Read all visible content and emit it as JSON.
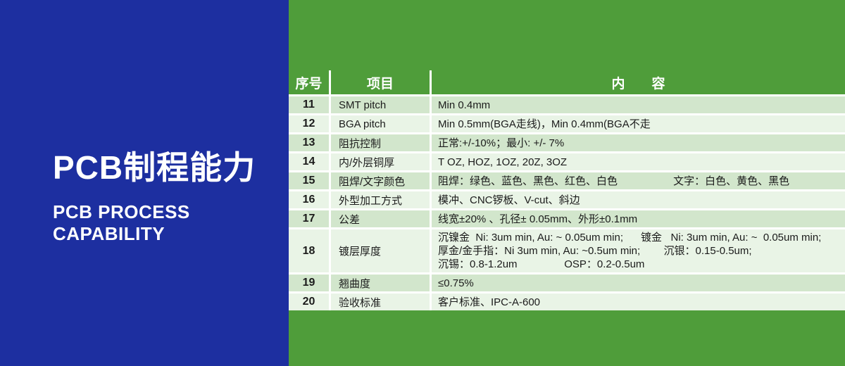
{
  "left_panel": {
    "title": "PCB制程能力",
    "subtitle_line1": "PCB PROCESS",
    "subtitle_line2": "CAPABILITY"
  },
  "table": {
    "header": {
      "no": "序号",
      "item": "项目",
      "content": "内　　容"
    },
    "rows": [
      {
        "no": "11",
        "item": "SMT pitch",
        "content_lines": [
          "Min 0.4mm"
        ]
      },
      {
        "no": "12",
        "item": "BGA pitch",
        "content_lines": [
          "Min 0.5mm(BGA走线)，Min 0.4mm(BGA不走"
        ]
      },
      {
        "no": "13",
        "item": "阻抗控制",
        "content_lines": [
          "正常:+/-10%；最小: +/- 7%"
        ]
      },
      {
        "no": "14",
        "item": "内/外层铜厚",
        "content_lines": [
          "T OZ, HOZ, 1OZ, 20Z, 3OZ"
        ]
      },
      {
        "no": "15",
        "item": "阻焊/文字颜色",
        "content_lines": [
          "阻焊：绿色、蓝色、黑色、红色、白色                   文字：白色、黄色、黑色"
        ]
      },
      {
        "no": "16",
        "item": "外型加工方式",
        "content_lines": [
          "模冲、CNC锣板、V-cut、斜边"
        ]
      },
      {
        "no": "17",
        "item": "公差",
        "content_lines": [
          "线宽±20% 、孔径± 0.05mm、外形±0.1mm"
        ]
      },
      {
        "no": "18",
        "item": "镀层厚度",
        "content_lines": [
          "沉镍金  Ni: 3um min, Au: ~ 0.05um min;      镀金   Ni: 3um min, Au: ~  0.05um min;",
          "厚金/金手指：Ni 3um min, Au: ~0.5um min;        沉银：0.15-0.5um;",
          "沉锡：0.8-1.2um                OSP：0.2-0.5um"
        ]
      },
      {
        "no": "19",
        "item": "翘曲度",
        "content_lines": [
          "≤0.75%"
        ]
      },
      {
        "no": "20",
        "item": "验收标准",
        "content_lines": [
          "客户标准、IPC-A-600"
        ]
      }
    ]
  },
  "colors": {
    "panel_blue": "#1d2fa0",
    "panel_green": "#4f9d3a",
    "row_stripe_dark": "#d2e6cc",
    "row_stripe_light": "#e9f4e6",
    "header_text": "#ffffff",
    "body_text": "#1b1b1b"
  }
}
